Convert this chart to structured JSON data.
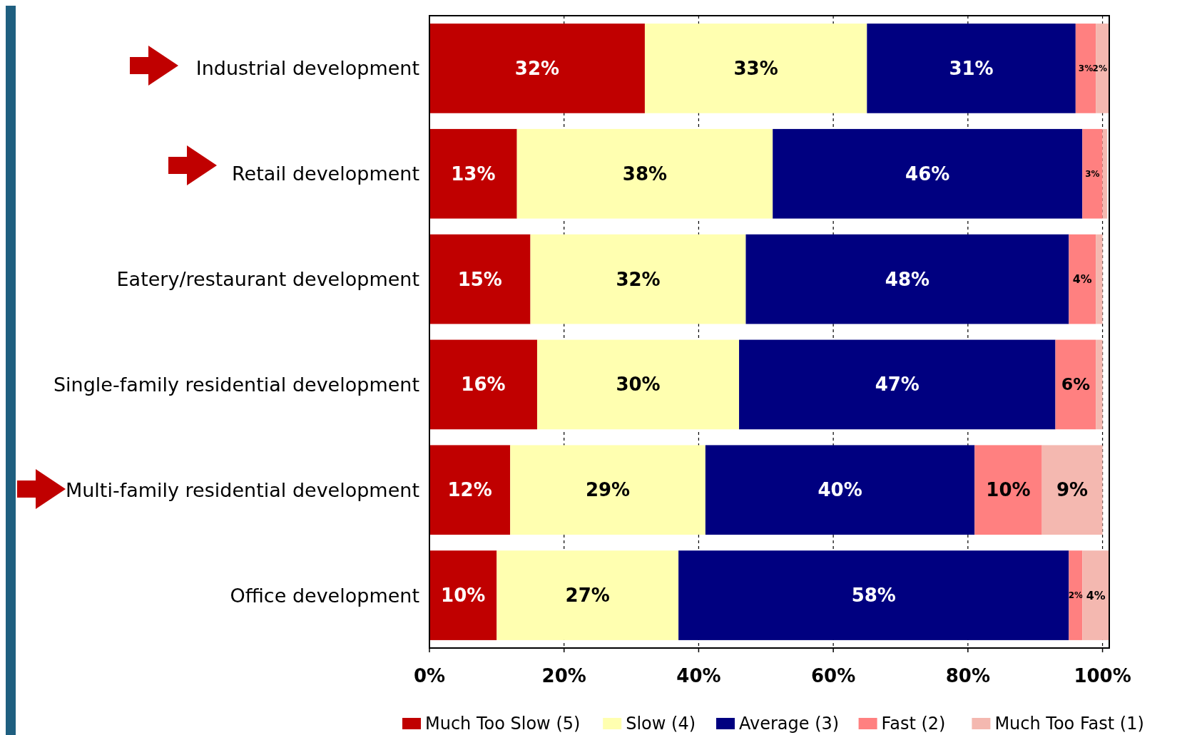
{
  "chart_data": {
    "type": "bar",
    "orientation": "horizontal",
    "stacked": true,
    "categories": [
      "Industrial development",
      "Retail development",
      "Eatery/restaurant development",
      "Single-family residential development",
      "Multi-family residential development",
      "Office development"
    ],
    "series": [
      {
        "name": "Much Too Slow (5)",
        "color": "#c00000",
        "values": [
          32,
          13,
          15,
          16,
          12,
          10
        ],
        "value_labels": [
          "32%",
          "13%",
          "15%",
          "16%",
          "12%",
          "10%"
        ]
      },
      {
        "name": "Slow (4)",
        "color": "#ffffb0",
        "values": [
          33,
          38,
          32,
          30,
          29,
          27
        ],
        "value_labels": [
          "33%",
          "38%",
          "32%",
          "30%",
          "29%",
          "27%"
        ]
      },
      {
        "name": "Average (3)",
        "color": "#000080",
        "values": [
          31,
          46,
          48,
          47,
          40,
          58
        ],
        "value_labels": [
          "31%",
          "46%",
          "48%",
          "47%",
          "40%",
          "58%"
        ]
      },
      {
        "name": "Fast (2)",
        "color": "#ff8080",
        "values": [
          3,
          3,
          4,
          6,
          10,
          2
        ],
        "value_labels": [
          "3%",
          "3%",
          "4%",
          "6%",
          "10%",
          "2%"
        ]
      },
      {
        "name": "Much Too Fast (1)",
        "color": "#f4b8b0",
        "values": [
          2,
          0.7,
          1,
          1,
          9,
          4
        ],
        "value_labels": [
          "2%",
          null,
          null,
          null,
          "9%",
          "4%"
        ]
      }
    ],
    "xlim": [
      0,
      101
    ],
    "xticks": [
      {
        "value": 0,
        "label": "0%"
      },
      {
        "value": 20,
        "label": "20%"
      },
      {
        "value": 40,
        "label": "40%"
      },
      {
        "value": 60,
        "label": "60%"
      },
      {
        "value": 80,
        "label": "80%"
      },
      {
        "value": 100,
        "label": "100%"
      }
    ],
    "grid": "x",
    "legend": "bottom"
  }
}
